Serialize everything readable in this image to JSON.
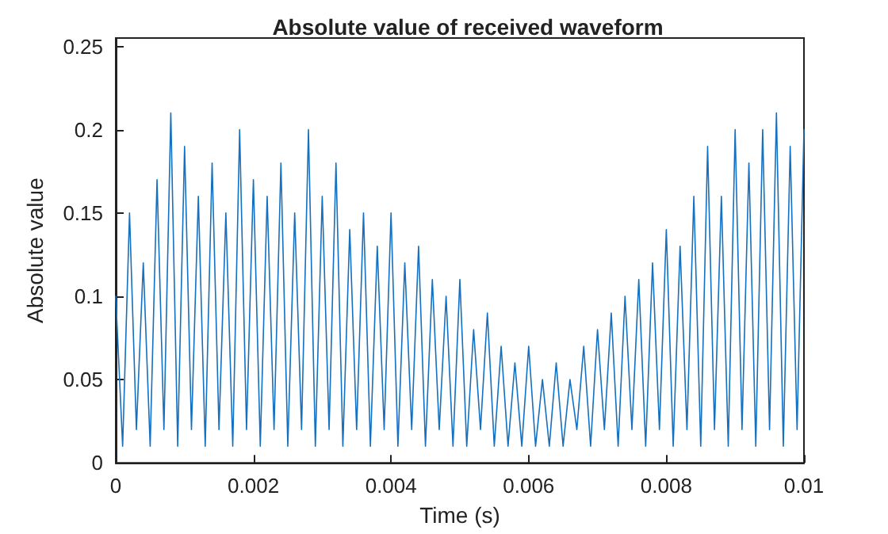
{
  "chart_data": {
    "type": "line",
    "title": "Absolute value of received waveform",
    "xlabel": "Time (s)",
    "ylabel": "Absolute value",
    "x": [
      0,
      0.0001,
      0.0002,
      0.0003,
      0.0004,
      0.0005,
      0.0006,
      0.0007,
      0.0008,
      0.0009,
      0.001,
      0.0011,
      0.0012,
      0.0013,
      0.0014,
      0.0015,
      0.0016,
      0.0017,
      0.0018,
      0.0019,
      0.002,
      0.0021,
      0.0022,
      0.0023,
      0.0024,
      0.0025,
      0.0026,
      0.0027,
      0.0028,
      0.0029,
      0.003,
      0.0031,
      0.0032,
      0.0033,
      0.0034,
      0.0035,
      0.0036,
      0.0037,
      0.0038,
      0.0039,
      0.004,
      0.0041,
      0.0042,
      0.0043,
      0.0044,
      0.0045,
      0.0046,
      0.0047,
      0.0048,
      0.0049,
      0.005,
      0.0051,
      0.0052,
      0.0053,
      0.0054,
      0.0055,
      0.0056,
      0.0057,
      0.0058,
      0.0059,
      0.006,
      0.0061,
      0.0062,
      0.0063,
      0.0064,
      0.0065,
      0.0066,
      0.0067,
      0.0068,
      0.0069,
      0.007,
      0.0071,
      0.0072,
      0.0073,
      0.0074,
      0.0075,
      0.0076,
      0.0077,
      0.0078,
      0.0079,
      0.008,
      0.0081,
      0.0082,
      0.0083,
      0.0084,
      0.0085,
      0.0086,
      0.0087,
      0.0088,
      0.0089,
      0.009,
      0.0091,
      0.0092,
      0.0093,
      0.0094,
      0.0095,
      0.0096,
      0.0097,
      0.0098,
      0.0099,
      0.01
    ],
    "series": [
      {
        "color": "#1470c0",
        "values": [
          0.1,
          0.01,
          0.15,
          0.02,
          0.12,
          0.01,
          0.17,
          0.02,
          0.21,
          0.01,
          0.19,
          0.02,
          0.16,
          0.01,
          0.18,
          0.02,
          0.15,
          0.01,
          0.2,
          0.02,
          0.17,
          0.01,
          0.16,
          0.02,
          0.18,
          0.01,
          0.15,
          0.02,
          0.2,
          0.01,
          0.16,
          0.02,
          0.18,
          0.01,
          0.14,
          0.02,
          0.15,
          0.01,
          0.13,
          0.02,
          0.15,
          0.01,
          0.12,
          0.02,
          0.13,
          0.01,
          0.11,
          0.02,
          0.1,
          0.01,
          0.11,
          0.01,
          0.08,
          0.02,
          0.09,
          0.01,
          0.07,
          0.01,
          0.06,
          0.01,
          0.07,
          0.01,
          0.05,
          0.01,
          0.06,
          0.01,
          0.05,
          0.02,
          0.07,
          0.01,
          0.08,
          0.02,
          0.09,
          0.01,
          0.1,
          0.02,
          0.11,
          0.01,
          0.12,
          0.02,
          0.14,
          0.01,
          0.13,
          0.02,
          0.16,
          0.01,
          0.19,
          0.02,
          0.16,
          0.01,
          0.2,
          0.02,
          0.18,
          0.01,
          0.2,
          0.02,
          0.21,
          0.01,
          0.19,
          0.02,
          0.2
        ]
      }
    ],
    "xlim": [
      0,
      0.01
    ],
    "xticks": [
      0,
      0.002,
      0.004,
      0.006,
      0.008,
      0.01
    ],
    "ylim": [
      0,
      0.255
    ],
    "yticks": [
      0,
      0.05,
      0.1,
      0.15,
      0.2,
      0.25
    ],
    "grid": false,
    "marker": "none",
    "line_style": "solid"
  }
}
